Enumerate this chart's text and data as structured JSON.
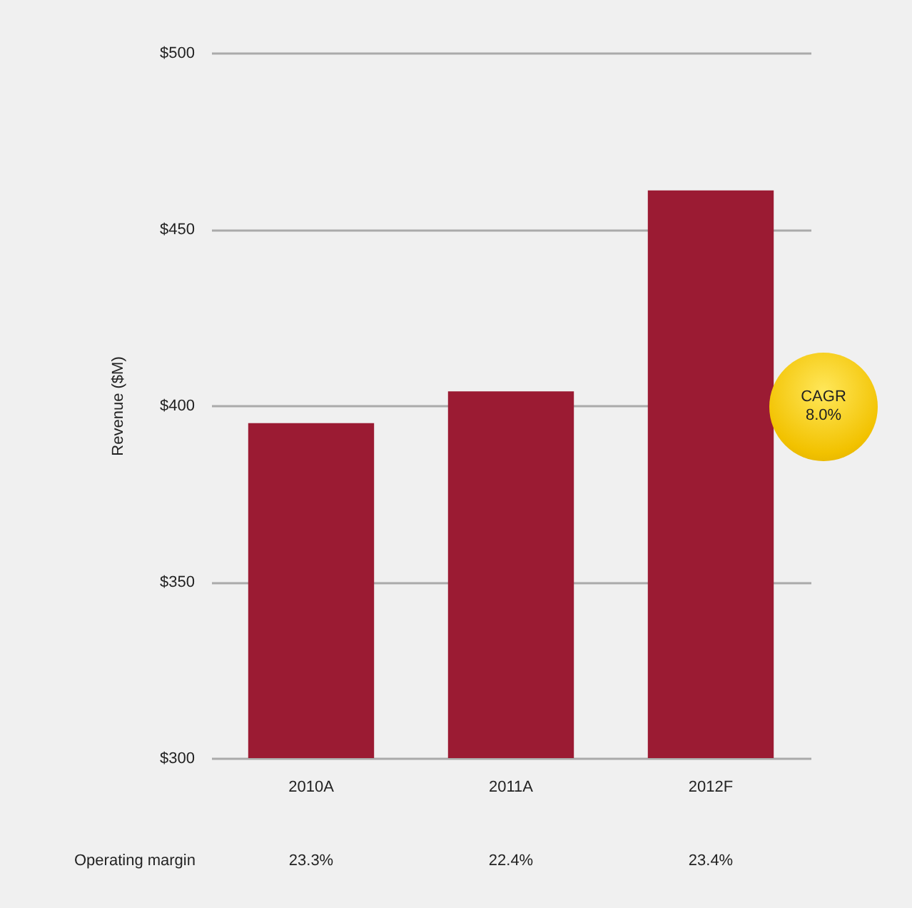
{
  "chart_data": {
    "type": "bar",
    "ylabel": "Revenue ($M)",
    "categories": [
      "2010A",
      "2011A",
      "2012F"
    ],
    "values": [
      395,
      404,
      461
    ],
    "color": "#9b1b33",
    "ylim": [
      300,
      500
    ],
    "yticks": [
      {
        "value": 300,
        "label": "$300"
      },
      {
        "value": 350,
        "label": "$350"
      },
      {
        "value": 400,
        "label": "$400"
      },
      {
        "value": 450,
        "label": "$450"
      },
      {
        "value": 500,
        "label": "$500"
      }
    ],
    "grid": "y",
    "annotations": [
      "CAGR 8.0%",
      "Operating margin",
      "23.3%",
      "22.4%",
      "23.4%"
    ]
  }
}
